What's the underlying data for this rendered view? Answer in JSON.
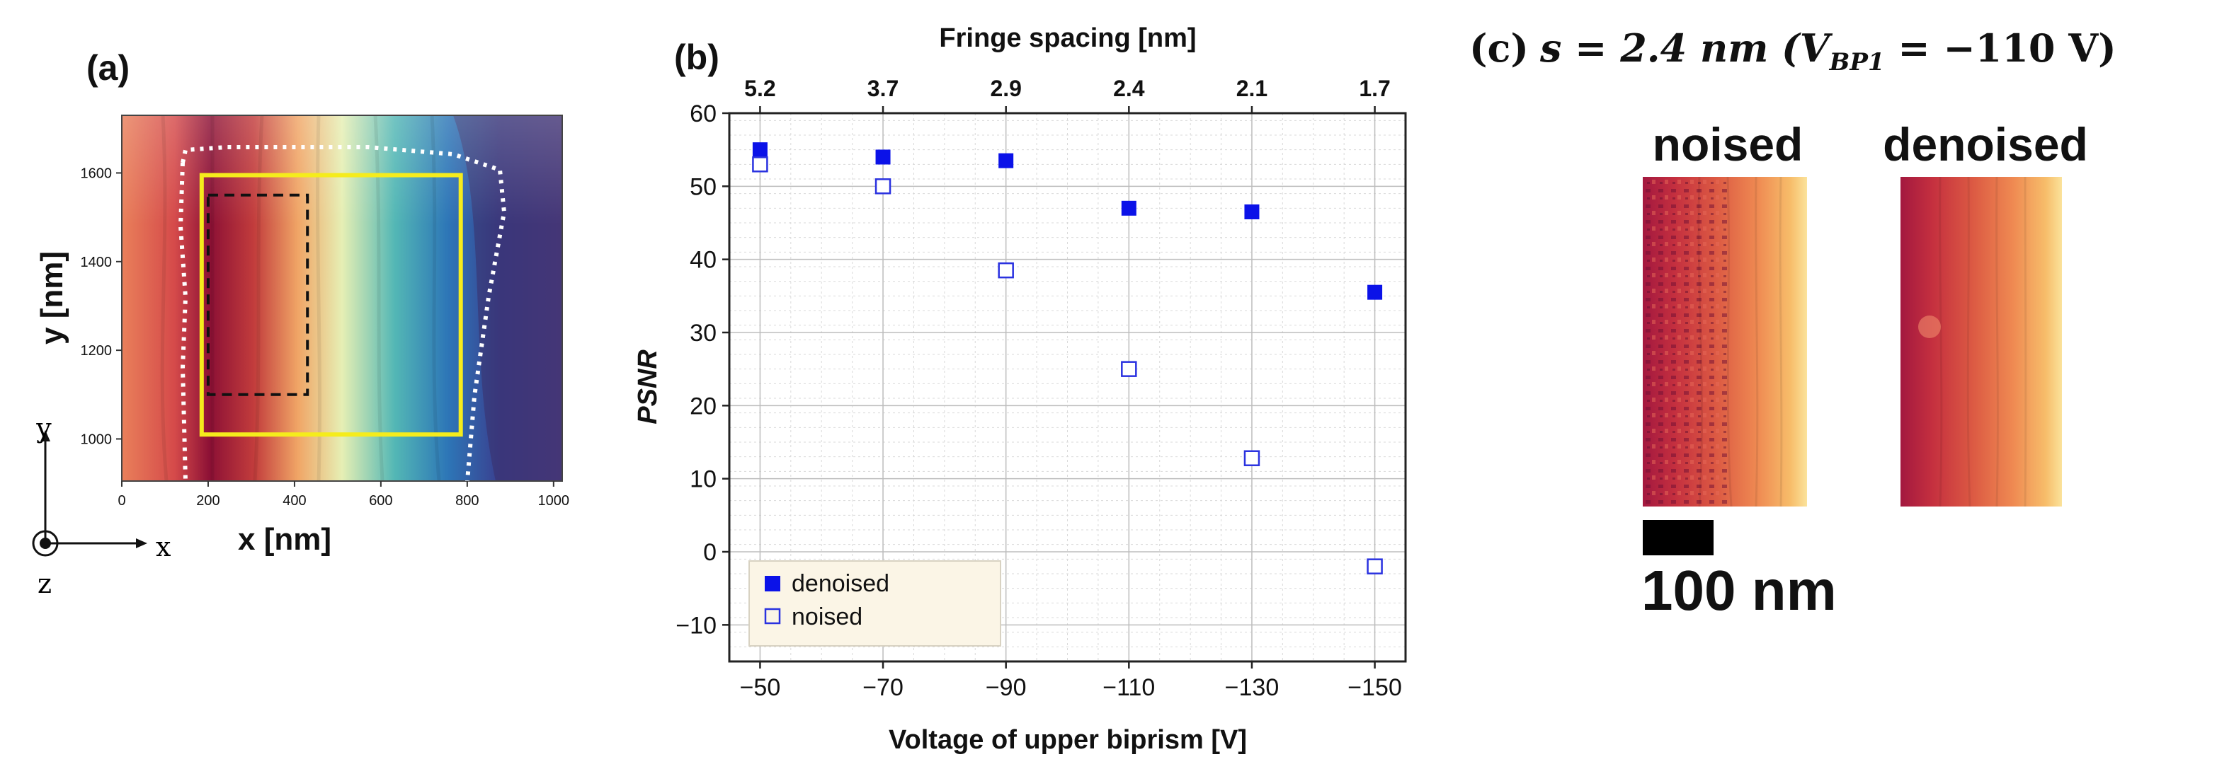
{
  "panel_a": {
    "label": "(a)",
    "xlabel": "x [nm]",
    "ylabel": "y [nm]",
    "x_ticks": [
      "0",
      "200",
      "400",
      "600",
      "800",
      "1000"
    ],
    "y_ticks": [
      "1000",
      "1200",
      "1400",
      "1600"
    ],
    "xlim": [
      0,
      1020
    ],
    "ylim": [
      905,
      1730
    ],
    "solid_roi_yellow": {
      "x": [
        185,
        785
      ],
      "y": [
        1010,
        1595
      ]
    },
    "dashed_roi_black": {
      "x": [
        200,
        430
      ],
      "y": [
        1100,
        1550
      ]
    },
    "axis_triad": {
      "y": "y",
      "x": "x",
      "z": "z"
    },
    "colors": {
      "roi": "#f5ec1c",
      "boundary": "#ffffff"
    }
  },
  "chart_data": {
    "type": "scatter",
    "title": "",
    "panel_label": "(b)",
    "x": [
      -50,
      -70,
      -90,
      -110,
      -130,
      -150
    ],
    "x_tick_labels": [
      "−50",
      "−70",
      "−90",
      "−110",
      "−130",
      "−150"
    ],
    "xlabel": "Voltage of upper biprism [V]",
    "ylabel": "PSNR",
    "xlim": [
      -45,
      -155
    ],
    "ylim": [
      -15,
      60
    ],
    "y_ticks": [
      -10,
      0,
      10,
      20,
      30,
      40,
      50,
      60
    ],
    "y_tick_labels": [
      "−10",
      "0",
      "10",
      "20",
      "30",
      "40",
      "50",
      "60"
    ],
    "top_axis": {
      "label": "Fringe spacing [nm]",
      "tick_labels": [
        "5.2",
        "3.7",
        "2.9",
        "2.4",
        "2.1",
        "1.7"
      ]
    },
    "series": [
      {
        "name": "denoised",
        "marker": "filled-square",
        "color": "#0b12e8",
        "values": [
          55,
          54,
          53.5,
          47,
          46.5,
          35.5
        ]
      },
      {
        "name": "noised",
        "marker": "open-square",
        "color": "#2a32e0",
        "values": [
          53,
          50,
          38.5,
          25,
          12.8,
          -2
        ]
      }
    ],
    "legend_position": "bottom-left",
    "grid": true
  },
  "panel_c": {
    "label": "(c)",
    "title_eq": "s = 2.4 nm (V",
    "title_sub": "BP1",
    "title_tail": " = −110 V)",
    "image_left_title": "noised",
    "image_right_title": "denoised",
    "scale_bar_label": "100 nm"
  }
}
